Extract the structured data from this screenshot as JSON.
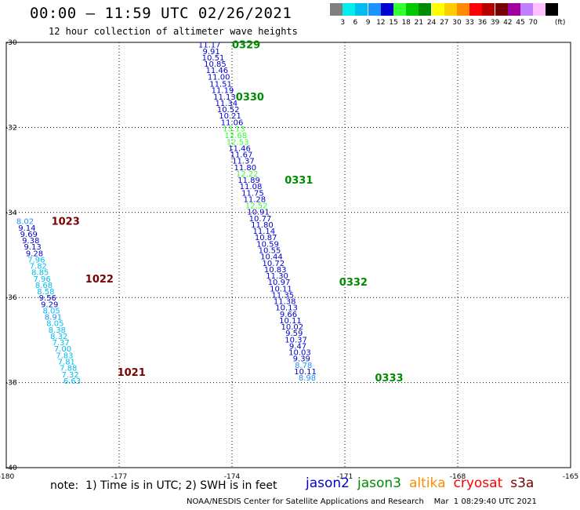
{
  "title": "00:00 – 11:59 UTC 02/26/2021",
  "subtitle": "12 hour collection of altimeter wave heights",
  "scale": {
    "unit_label": "(ft)",
    "swatches": [
      {
        "label": "",
        "color": "#808080"
      },
      {
        "label": "3",
        "color": "#00eeee"
      },
      {
        "label": "6",
        "color": "#00bcf2"
      },
      {
        "label": "9",
        "color": "#1e90ff"
      },
      {
        "label": "12",
        "color": "#0000cd"
      },
      {
        "label": "15",
        "color": "#33ff33"
      },
      {
        "label": "18",
        "color": "#00c800"
      },
      {
        "label": "21",
        "color": "#008c00"
      },
      {
        "label": "24",
        "color": "#ffff00"
      },
      {
        "label": "27",
        "color": "#ffcc00"
      },
      {
        "label": "30",
        "color": "#ff8c00"
      },
      {
        "label": "33",
        "color": "#ff0000"
      },
      {
        "label": "36",
        "color": "#b40000"
      },
      {
        "label": "39",
        "color": "#780000"
      },
      {
        "label": "42",
        "color": "#a000a0"
      },
      {
        "label": "45",
        "color": "#c080ff"
      },
      {
        "label": "70",
        "color": "#ffc0ff"
      },
      {
        "label": "",
        "color": "#000000"
      }
    ]
  },
  "note": "note:  1) Time is in UTC; 2) SWH is in feet",
  "satellites": [
    {
      "name": "jason2",
      "color": "#0000cd"
    },
    {
      "name": "jason3",
      "color": "#008c00"
    },
    {
      "name": "altika",
      "color": "#ff8c00"
    },
    {
      "name": "cryosat",
      "color": "#ff0000"
    },
    {
      "name": "s3a",
      "color": "#780000"
    }
  ],
  "credit": "NOAA/NESDIS Center for Satellite Applications and Research    Mar  1 08:29:40 UTC 2021",
  "chart_data": {
    "type": "scatter",
    "xlim": [
      -180,
      -165
    ],
    "ylim": [
      -40,
      -30
    ],
    "x_ticks": [
      "-180",
      "-177",
      "-174",
      "-171",
      "-168",
      "-165"
    ],
    "y_ticks": [
      "-30",
      "-32",
      "-34",
      "-36",
      "-38",
      "-40"
    ],
    "grid": true,
    "colors": {
      "c6": "#00bcf2",
      "c9": "#1e90ff",
      "c12": "#0000cd",
      "c15": "#33ff33"
    },
    "points": [
      {
        "lon": -174.6,
        "lat": -30.05,
        "v": "11.17",
        "c": "c12"
      },
      {
        "lon": -174.55,
        "lat": -30.2,
        "v": "9.91",
        "c": "c12"
      },
      {
        "lon": -174.5,
        "lat": -30.35,
        "v": "10.51",
        "c": "c12"
      },
      {
        "lon": -174.45,
        "lat": -30.5,
        "v": "10.85",
        "c": "c12"
      },
      {
        "lon": -174.4,
        "lat": -30.65,
        "v": "11.46",
        "c": "c12"
      },
      {
        "lon": -174.35,
        "lat": -30.8,
        "v": "11.00",
        "c": "c12"
      },
      {
        "lon": -174.3,
        "lat": -30.97,
        "v": "11.51",
        "c": "c12"
      },
      {
        "lon": -174.25,
        "lat": -31.12,
        "v": "11.19",
        "c": "c12"
      },
      {
        "lon": -174.2,
        "lat": -31.27,
        "v": "11.13",
        "c": "c12"
      },
      {
        "lon": -174.15,
        "lat": -31.42,
        "v": "11.34",
        "c": "c12"
      },
      {
        "lon": -174.1,
        "lat": -31.57,
        "v": "10.52",
        "c": "c12"
      },
      {
        "lon": -174.05,
        "lat": -31.72,
        "v": "10.21",
        "c": "c12"
      },
      {
        "lon": -174.0,
        "lat": -31.87,
        "v": "11.06",
        "c": "c12"
      },
      {
        "lon": -173.95,
        "lat": -32.02,
        "v": "13.13",
        "c": "c15"
      },
      {
        "lon": -173.9,
        "lat": -32.18,
        "v": "12.68",
        "c": "c15"
      },
      {
        "lon": -173.85,
        "lat": -32.33,
        "v": "12.53",
        "c": "c15"
      },
      {
        "lon": -173.8,
        "lat": -32.48,
        "v": "11.46",
        "c": "c12"
      },
      {
        "lon": -173.75,
        "lat": -32.63,
        "v": "11.67",
        "c": "c12"
      },
      {
        "lon": -173.7,
        "lat": -32.78,
        "v": "11.37",
        "c": "c12"
      },
      {
        "lon": -173.65,
        "lat": -32.93,
        "v": "11.80",
        "c": "c12"
      },
      {
        "lon": -173.6,
        "lat": -33.08,
        "v": "12.22",
        "c": "c15"
      },
      {
        "lon": -173.55,
        "lat": -33.23,
        "v": "11.89",
        "c": "c12"
      },
      {
        "lon": -173.5,
        "lat": -33.38,
        "v": "11.08",
        "c": "c12"
      },
      {
        "lon": -173.45,
        "lat": -33.53,
        "v": "11.75",
        "c": "c12"
      },
      {
        "lon": -173.4,
        "lat": -33.68,
        "v": "11.28",
        "c": "c12"
      },
      {
        "lon": -173.35,
        "lat": -33.83,
        "v": "12.52",
        "c": "c15"
      },
      {
        "lon": -173.3,
        "lat": -33.98,
        "v": "10.91",
        "c": "c12"
      },
      {
        "lon": -173.25,
        "lat": -34.13,
        "v": "10.77",
        "c": "c12"
      },
      {
        "lon": -173.2,
        "lat": -34.28,
        "v": "11.80",
        "c": "c12"
      },
      {
        "lon": -173.15,
        "lat": -34.43,
        "v": "11.14",
        "c": "c12"
      },
      {
        "lon": -173.1,
        "lat": -34.58,
        "v": "10.87",
        "c": "c12"
      },
      {
        "lon": -173.05,
        "lat": -34.73,
        "v": "10.59",
        "c": "c12"
      },
      {
        "lon": -173.0,
        "lat": -34.88,
        "v": "10.55",
        "c": "c12"
      },
      {
        "lon": -172.95,
        "lat": -35.03,
        "v": "10.44",
        "c": "c12"
      },
      {
        "lon": -172.9,
        "lat": -35.18,
        "v": "10.72",
        "c": "c12"
      },
      {
        "lon": -172.85,
        "lat": -35.33,
        "v": "10.83",
        "c": "c12"
      },
      {
        "lon": -172.8,
        "lat": -35.48,
        "v": "11.30",
        "c": "c12"
      },
      {
        "lon": -172.75,
        "lat": -35.63,
        "v": "10.97",
        "c": "c12"
      },
      {
        "lon": -172.7,
        "lat": -35.78,
        "v": "10.11",
        "c": "c12"
      },
      {
        "lon": -172.65,
        "lat": -35.93,
        "v": "11.35",
        "c": "c12"
      },
      {
        "lon": -172.6,
        "lat": -36.08,
        "v": "11.38",
        "c": "c12"
      },
      {
        "lon": -172.55,
        "lat": -36.23,
        "v": "10.13",
        "c": "c12"
      },
      {
        "lon": -172.5,
        "lat": -36.38,
        "v": "9.66",
        "c": "c12"
      },
      {
        "lon": -172.45,
        "lat": -36.53,
        "v": "10.11",
        "c": "c12"
      },
      {
        "lon": -172.4,
        "lat": -36.68,
        "v": "10.02",
        "c": "c12"
      },
      {
        "lon": -172.35,
        "lat": -36.83,
        "v": "9.59",
        "c": "c12"
      },
      {
        "lon": -172.3,
        "lat": -36.98,
        "v": "10.37",
        "c": "c12"
      },
      {
        "lon": -172.25,
        "lat": -37.13,
        "v": "9.47",
        "c": "c12"
      },
      {
        "lon": -172.2,
        "lat": -37.28,
        "v": "10.03",
        "c": "c12"
      },
      {
        "lon": -172.15,
        "lat": -37.43,
        "v": "9.39",
        "c": "c12"
      },
      {
        "lon": -172.1,
        "lat": -37.58,
        "v": "8.78",
        "c": "c9"
      },
      {
        "lon": -172.05,
        "lat": -37.73,
        "v": "10.11",
        "c": "c12"
      },
      {
        "lon": -172.0,
        "lat": -37.88,
        "v": "8.98",
        "c": "c9"
      },
      {
        "lon": -179.5,
        "lat": -34.2,
        "v": "8.02",
        "c": "c9"
      },
      {
        "lon": -179.45,
        "lat": -34.35,
        "v": "9.14",
        "c": "c12"
      },
      {
        "lon": -179.4,
        "lat": -34.5,
        "v": "9.69",
        "c": "c12"
      },
      {
        "lon": -179.35,
        "lat": -34.65,
        "v": "9.38",
        "c": "c12"
      },
      {
        "lon": -179.3,
        "lat": -34.8,
        "v": "9.13",
        "c": "c12"
      },
      {
        "lon": -179.25,
        "lat": -34.95,
        "v": "9.28",
        "c": "c12"
      },
      {
        "lon": -179.2,
        "lat": -35.1,
        "v": "7.96",
        "c": "c6"
      },
      {
        "lon": -179.15,
        "lat": -35.25,
        "v": "7.82",
        "c": "c6"
      },
      {
        "lon": -179.1,
        "lat": -35.4,
        "v": "8.85",
        "c": "c6"
      },
      {
        "lon": -179.05,
        "lat": -35.55,
        "v": "7.96",
        "c": "c6"
      },
      {
        "lon": -179.0,
        "lat": -35.7,
        "v": "8.68",
        "c": "c6"
      },
      {
        "lon": -178.95,
        "lat": -35.85,
        "v": "8.58",
        "c": "c6"
      },
      {
        "lon": -178.9,
        "lat": -36.0,
        "v": "9.56",
        "c": "c12"
      },
      {
        "lon": -178.85,
        "lat": -36.15,
        "v": "9.29",
        "c": "c12"
      },
      {
        "lon": -178.8,
        "lat": -36.3,
        "v": "8.05",
        "c": "c6"
      },
      {
        "lon": -178.75,
        "lat": -36.45,
        "v": "8.91",
        "c": "c9"
      },
      {
        "lon": -178.7,
        "lat": -36.6,
        "v": "8.05",
        "c": "c6"
      },
      {
        "lon": -178.65,
        "lat": -36.75,
        "v": "8.38",
        "c": "c6"
      },
      {
        "lon": -178.6,
        "lat": -36.9,
        "v": "8.32",
        "c": "c6"
      },
      {
        "lon": -178.55,
        "lat": -37.05,
        "v": "7.37",
        "c": "c6"
      },
      {
        "lon": -178.5,
        "lat": -37.2,
        "v": "7.00",
        "c": "c6"
      },
      {
        "lon": -178.45,
        "lat": -37.35,
        "v": "7.83",
        "c": "c6"
      },
      {
        "lon": -178.4,
        "lat": -37.5,
        "v": "7.81",
        "c": "c6"
      },
      {
        "lon": -178.35,
        "lat": -37.65,
        "v": "7.88",
        "c": "c6"
      },
      {
        "lon": -178.3,
        "lat": -37.8,
        "v": "7.32",
        "c": "c6"
      },
      {
        "lon": -178.25,
        "lat": -37.95,
        "v": "6.63",
        "c": "c6"
      }
    ],
    "pass_times": [
      {
        "lon": -174.0,
        "lat": -30.05,
        "text": "0329",
        "color": "#008c00"
      },
      {
        "lon": -173.9,
        "lat": -31.27,
        "text": "0330",
        "color": "#008c00"
      },
      {
        "lon": -172.6,
        "lat": -33.23,
        "text": "0331",
        "color": "#008c00"
      },
      {
        "lon": -171.15,
        "lat": -35.63,
        "text": "0332",
        "color": "#008c00"
      },
      {
        "lon": -170.2,
        "lat": -37.88,
        "text": "0333",
        "color": "#008c00"
      },
      {
        "lon": -178.8,
        "lat": -34.2,
        "text": "1023",
        "color": "#780000"
      },
      {
        "lon": -177.9,
        "lat": -35.55,
        "text": "1022",
        "color": "#780000"
      },
      {
        "lon": -177.05,
        "lat": -37.75,
        "text": "1021",
        "color": "#780000"
      }
    ]
  }
}
